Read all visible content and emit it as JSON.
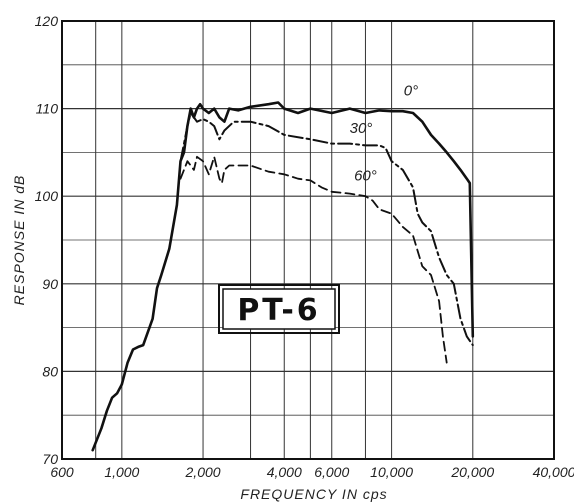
{
  "chart_data": {
    "type": "line",
    "xlabel": "FREQUENCY   IN  cps",
    "ylabel": "RESPONSE  IN  dB",
    "xscale": "log",
    "xlim": [
      600,
      40000
    ],
    "ylim": [
      70,
      120
    ],
    "x_ticks": [
      {
        "value": 600,
        "label": "600"
      },
      {
        "value": 1000,
        "label": "1,000"
      },
      {
        "value": 2000,
        "label": "2,000"
      },
      {
        "value": 4000,
        "label": "4,000"
      },
      {
        "value": 6000,
        "label": "6,000"
      },
      {
        "value": 10000,
        "label": "10,000"
      },
      {
        "value": 20000,
        "label": "20,000"
      },
      {
        "value": 40000,
        "label": "40,000"
      }
    ],
    "y_ticks": [
      {
        "value": 70,
        "label": "70"
      },
      {
        "value": 80,
        "label": "80"
      },
      {
        "value": 90,
        "label": "90"
      },
      {
        "value": 100,
        "label": "100"
      },
      {
        "value": 110,
        "label": "110"
      },
      {
        "value": 120,
        "label": "120"
      }
    ],
    "grid": true,
    "annotation": "PT-6",
    "series": [
      {
        "name": "0°",
        "style": "solid",
        "color": "#111111",
        "points": [
          [
            780,
            71
          ],
          [
            840,
            73.5
          ],
          [
            880,
            75.5
          ],
          [
            920,
            77
          ],
          [
            960,
            77.5
          ],
          [
            1000,
            78.5
          ],
          [
            1050,
            81
          ],
          [
            1100,
            82.5
          ],
          [
            1150,
            82.8
          ],
          [
            1200,
            83
          ],
          [
            1300,
            86
          ],
          [
            1350,
            89.5
          ],
          [
            1400,
            91
          ],
          [
            1500,
            94
          ],
          [
            1600,
            99
          ],
          [
            1650,
            104
          ],
          [
            1700,
            105
          ],
          [
            1750,
            108
          ],
          [
            1800,
            110
          ],
          [
            1850,
            109
          ],
          [
            1900,
            110
          ],
          [
            1950,
            110.5
          ],
          [
            2000,
            110
          ],
          [
            2100,
            109.5
          ],
          [
            2200,
            110
          ],
          [
            2300,
            109
          ],
          [
            2400,
            108.5
          ],
          [
            2500,
            110
          ],
          [
            2700,
            109.8
          ],
          [
            3000,
            110.2
          ],
          [
            3500,
            110.5
          ],
          [
            3800,
            110.7
          ],
          [
            4000,
            110
          ],
          [
            4500,
            109.5
          ],
          [
            5000,
            110
          ],
          [
            6000,
            109.5
          ],
          [
            7000,
            110
          ],
          [
            8000,
            109.5
          ],
          [
            9000,
            109.8
          ],
          [
            10000,
            109.7
          ],
          [
            11000,
            109.7
          ],
          [
            12000,
            109.5
          ],
          [
            13000,
            108.5
          ],
          [
            14000,
            107
          ],
          [
            15000,
            106
          ],
          [
            16000,
            105
          ],
          [
            17000,
            104
          ],
          [
            18000,
            103
          ],
          [
            19000,
            102
          ],
          [
            19500,
            101.5
          ],
          [
            20000,
            84
          ]
        ]
      },
      {
        "name": "30°",
        "style": "dashdot",
        "color": "#111111",
        "points": [
          [
            1650,
            104
          ],
          [
            1700,
            106
          ],
          [
            1750,
            108
          ],
          [
            1800,
            109.5
          ],
          [
            1850,
            109
          ],
          [
            1900,
            108.5
          ],
          [
            2000,
            108.8
          ],
          [
            2100,
            108.5
          ],
          [
            2200,
            108
          ],
          [
            2300,
            106.5
          ],
          [
            2400,
            107.5
          ],
          [
            2600,
            108.5
          ],
          [
            3000,
            108.5
          ],
          [
            3500,
            108
          ],
          [
            4000,
            107
          ],
          [
            5000,
            106.5
          ],
          [
            6000,
            106
          ],
          [
            7000,
            106
          ],
          [
            8000,
            105.8
          ],
          [
            9000,
            105.8
          ],
          [
            9500,
            105.5
          ],
          [
            10000,
            104
          ],
          [
            11000,
            103
          ],
          [
            12000,
            101
          ],
          [
            12500,
            98
          ],
          [
            13000,
            97
          ],
          [
            14000,
            96
          ],
          [
            15000,
            93
          ],
          [
            16000,
            91
          ],
          [
            17000,
            90
          ],
          [
            18000,
            86
          ],
          [
            19000,
            84
          ],
          [
            20000,
            83
          ]
        ]
      },
      {
        "name": "60°",
        "style": "dashed",
        "color": "#111111",
        "points": [
          [
            1650,
            102
          ],
          [
            1700,
            103
          ],
          [
            1750,
            104
          ],
          [
            1800,
            103.5
          ],
          [
            1850,
            103
          ],
          [
            1900,
            104.5
          ],
          [
            2000,
            104
          ],
          [
            2100,
            102.5
          ],
          [
            2200,
            104.5
          ],
          [
            2300,
            102
          ],
          [
            2350,
            101.5
          ],
          [
            2400,
            103
          ],
          [
            2500,
            103.5
          ],
          [
            2700,
            103.5
          ],
          [
            3000,
            103.5
          ],
          [
            3500,
            102.8
          ],
          [
            4000,
            102.5
          ],
          [
            4500,
            102
          ],
          [
            5000,
            101.8
          ],
          [
            5500,
            101
          ],
          [
            6000,
            100.5
          ],
          [
            7000,
            100.3
          ],
          [
            8000,
            100
          ],
          [
            8500,
            99.5
          ],
          [
            9000,
            98.5
          ],
          [
            10000,
            98
          ],
          [
            11000,
            96.5
          ],
          [
            12000,
            95.5
          ],
          [
            13000,
            92
          ],
          [
            14000,
            91
          ],
          [
            15000,
            88
          ],
          [
            15500,
            84
          ],
          [
            16000,
            81
          ]
        ]
      }
    ]
  }
}
